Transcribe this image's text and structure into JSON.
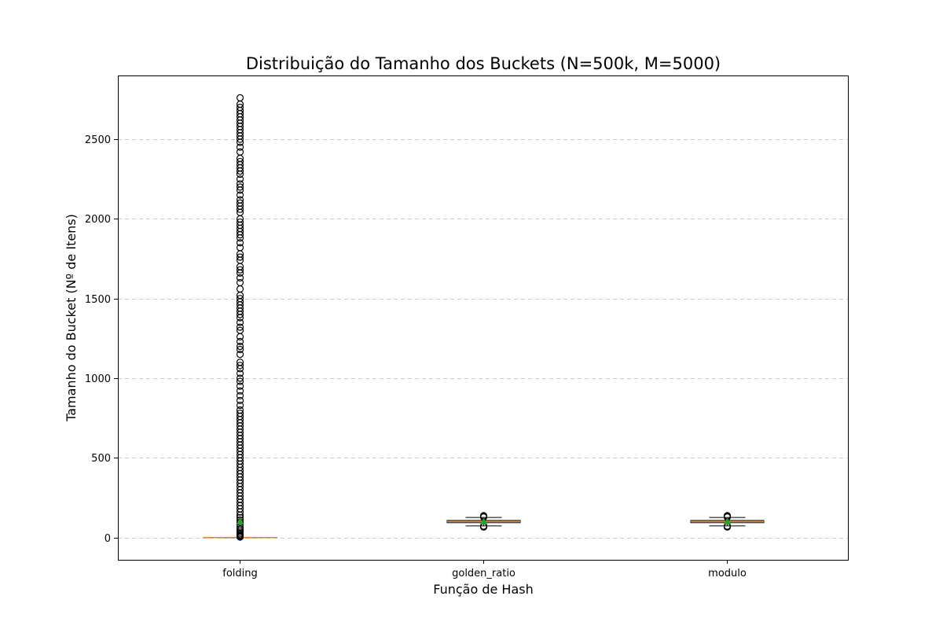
{
  "chart_data": {
    "type": "box",
    "title": "Distribuição do Tamanho dos Buckets (N=500k, M=5000)",
    "xlabel": "Função de Hash",
    "ylabel": "Tamanho do Bucket (Nº de Itens)",
    "categories": [
      "folding",
      "golden_ratio",
      "modulo"
    ],
    "ylim": [
      -140,
      2900
    ],
    "yticks": [
      0,
      500,
      1000,
      1500,
      2000,
      2500
    ],
    "grid": "y-dashed",
    "colors": {
      "box": "#000000",
      "median": "#ff7f0e",
      "mean": "#2ca02c",
      "outlier": "#000000",
      "grid": "#cccccc"
    },
    "boxes": [
      {
        "name": "folding",
        "whisker_low": 0,
        "q1": 0,
        "median": 0,
        "q3": 0,
        "whisker_high": 0,
        "mean": 100,
        "outliers": [
          3,
          6,
          10,
          15,
          22,
          30,
          40,
          52,
          65,
          80,
          95,
          110,
          125,
          140,
          160,
          180,
          200,
          220,
          240,
          260,
          280,
          300,
          320,
          340,
          360,
          380,
          400,
          420,
          440,
          460,
          480,
          500,
          520,
          540,
          560,
          580,
          600,
          620,
          640,
          660,
          680,
          700,
          720,
          740,
          760,
          780,
          800,
          830,
          860,
          890,
          920,
          950,
          980,
          1000,
          1030,
          1060,
          1080,
          1100,
          1150,
          1180,
          1200,
          1230,
          1260,
          1300,
          1320,
          1350,
          1380,
          1400,
          1420,
          1440,
          1460,
          1480,
          1500,
          1520,
          1560,
          1600,
          1630,
          1660,
          1680,
          1700,
          1740,
          1760,
          1780,
          1820,
          1850,
          1880,
          1900,
          1920,
          1940,
          1960,
          1980,
          2000,
          2040,
          2060,
          2080,
          2100,
          2120,
          2150,
          2180,
          2200,
          2220,
          2250,
          2280,
          2300,
          2320,
          2340,
          2360,
          2380,
          2420,
          2450,
          2480,
          2500,
          2520,
          2540,
          2560,
          2580,
          2600,
          2620,
          2640,
          2660,
          2680,
          2700,
          2720,
          2760
        ]
      },
      {
        "name": "golden_ratio",
        "whisker_low": 73,
        "q1": 93,
        "median": 100,
        "q3": 107,
        "whisker_high": 126,
        "mean": 100,
        "outliers": [
          66,
          69,
          72,
          128,
          131,
          134,
          137
        ]
      },
      {
        "name": "modulo",
        "whisker_low": 73,
        "q1": 93,
        "median": 100,
        "q3": 107,
        "whisker_high": 126,
        "mean": 100,
        "outliers": [
          66,
          69,
          72,
          128,
          131,
          134,
          137
        ]
      }
    ]
  }
}
